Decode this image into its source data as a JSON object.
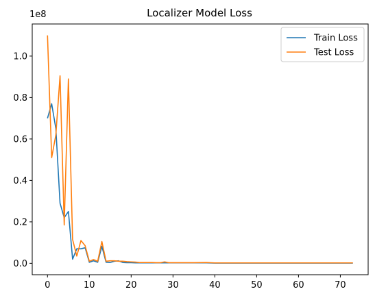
{
  "chart_data": {
    "type": "line",
    "title": "Localizer Model Loss",
    "xlabel": "",
    "ylabel": "",
    "y_offset_label": "1e8",
    "xlim": [
      -3.65,
      76.65
    ],
    "ylim": [
      -0.055,
      1.155
    ],
    "x_ticks": [
      0,
      10,
      20,
      30,
      40,
      50,
      60,
      70
    ],
    "x_tick_labels": [
      "0",
      "10",
      "20",
      "30",
      "40",
      "50",
      "60",
      "70"
    ],
    "y_ticks": [
      0.0,
      0.2,
      0.4,
      0.6,
      0.8,
      1.0
    ],
    "y_tick_labels": [
      "0.0",
      "0.2",
      "0.4",
      "0.6",
      "0.8",
      "1.0"
    ],
    "legend_position": "top-right",
    "grid": false,
    "series": [
      {
        "name": "Train Loss",
        "color": "#1f77b4",
        "x": [
          0,
          1,
          2,
          3,
          4,
          5,
          6,
          7,
          8,
          9,
          10,
          11,
          12,
          13,
          14,
          15,
          16,
          17,
          18,
          19,
          20,
          21,
          22,
          23,
          24,
          25,
          26,
          27,
          28,
          29,
          30,
          35,
          38,
          40,
          45,
          50,
          55,
          60,
          65,
          70,
          73
        ],
        "y": [
          0.7,
          0.77,
          0.65,
          0.29,
          0.22,
          0.25,
          0.02,
          0.07,
          0.07,
          0.075,
          0.005,
          0.012,
          0.005,
          0.082,
          0.005,
          0.004,
          0.01,
          0.012,
          0.004,
          0.003,
          0.003,
          0.002,
          0.002,
          0.002,
          0.002,
          0.002,
          0.002,
          0.002,
          0.002,
          0.002,
          0.002,
          0.002,
          0.002,
          0.001,
          0.001,
          0.001,
          0.001,
          0.001,
          0.001,
          0.001,
          0.001
        ]
      },
      {
        "name": "Test Loss",
        "color": "#ff7f0e",
        "x": [
          0,
          1,
          2,
          3,
          4,
          5,
          6,
          7,
          8,
          9,
          10,
          11,
          12,
          13,
          14,
          15,
          16,
          17,
          18,
          19,
          20,
          21,
          22,
          23,
          24,
          25,
          26,
          27,
          28,
          29,
          30,
          35,
          38,
          40,
          45,
          50,
          55,
          60,
          65,
          70,
          73
        ],
        "y": [
          1.1,
          0.51,
          0.62,
          0.905,
          0.185,
          0.89,
          0.115,
          0.035,
          0.11,
          0.085,
          0.01,
          0.018,
          0.01,
          0.105,
          0.01,
          0.012,
          0.012,
          0.01,
          0.01,
          0.008,
          0.007,
          0.006,
          0.004,
          0.004,
          0.004,
          0.004,
          0.003,
          0.003,
          0.007,
          0.003,
          0.003,
          0.003,
          0.004,
          0.002,
          0.002,
          0.002,
          0.002,
          0.002,
          0.002,
          0.002,
          0.002
        ]
      }
    ]
  }
}
